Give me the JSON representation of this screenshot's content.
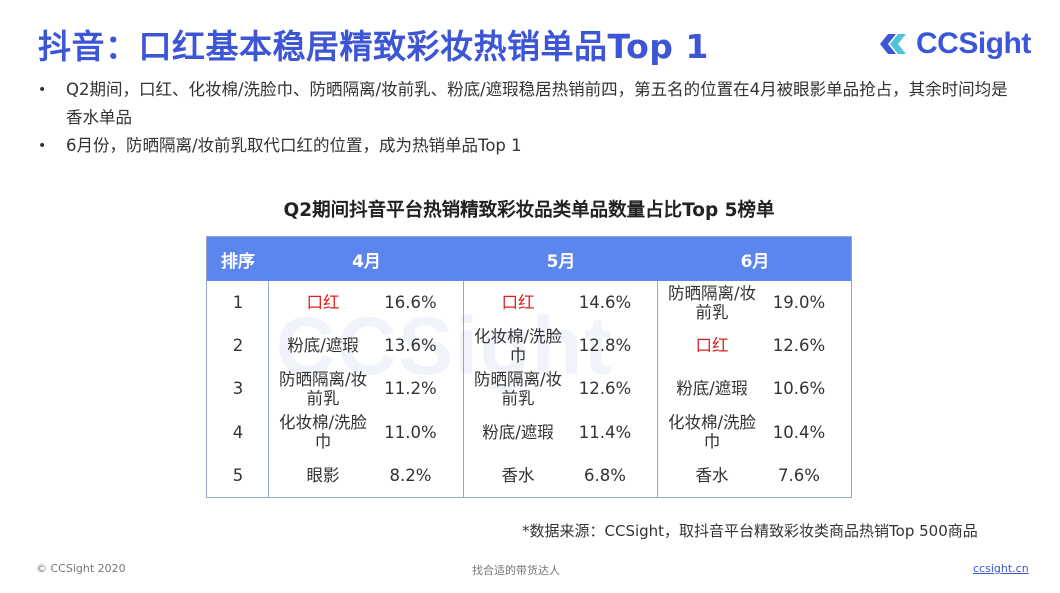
{
  "header": {
    "title": "抖音：口红基本稳居精致彩妆热销单品Top 1",
    "logo_text": "CCSight"
  },
  "bullets": [
    "Q2期间，口红、化妆棉/洗脸巾、防晒隔离/妆前乳、粉底/遮瑕稳居热销前四，第五名的位置在4月被眼影单品抢占，其余时间均是香水单品",
    "6月份，防晒隔离/妆前乳取代口红的位置，成为热销单品Top 1"
  ],
  "table": {
    "title": "Q2期间抖音平台热销精致彩妆品类单品数量占比Top 5榜单",
    "headers": [
      "排序",
      "4月",
      "5月",
      "6月"
    ],
    "rows": [
      {
        "rank": "1",
        "m4_name": "口红",
        "m4_pct": "16.6%",
        "m5_name": "口红",
        "m5_pct": "14.6%",
        "m6_name": "防晒隔离/妆前乳",
        "m6_pct": "19.0%"
      },
      {
        "rank": "2",
        "m4_name": "粉底/遮瑕",
        "m4_pct": "13.6%",
        "m5_name": "化妆棉/洗脸巾",
        "m5_pct": "12.8%",
        "m6_name": "口红",
        "m6_pct": "12.6%"
      },
      {
        "rank": "3",
        "m4_name": "防晒隔离/妆前乳",
        "m4_pct": "11.2%",
        "m5_name": "防晒隔离/妆前乳",
        "m5_pct": "12.6%",
        "m6_name": "粉底/遮瑕",
        "m6_pct": "10.6%"
      },
      {
        "rank": "4",
        "m4_name": "化妆棉/洗脸巾",
        "m4_pct": "11.0%",
        "m5_name": "粉底/遮瑕",
        "m5_pct": "11.4%",
        "m6_name": "化妆棉/洗脸巾",
        "m6_pct": "10.4%"
      },
      {
        "rank": "5",
        "m4_name": "眼影",
        "m4_pct": "8.2%",
        "m5_name": "香水",
        "m5_pct": "6.8%",
        "m6_name": "香水",
        "m6_pct": "7.6%"
      }
    ],
    "highlight_item": "口红",
    "highlight_color": "#e02020",
    "header_color": "#5b86ee"
  },
  "watermark": "CCSight",
  "source": "*数据来源：CCSight，取抖音平台精致彩妆类商品热销Top 500商品",
  "footer": {
    "copyright": "© CCSight 2020",
    "slogan": "找合适的带货达人",
    "link": "ccsight.cn"
  },
  "colors": {
    "brand": "#3d56d6"
  }
}
